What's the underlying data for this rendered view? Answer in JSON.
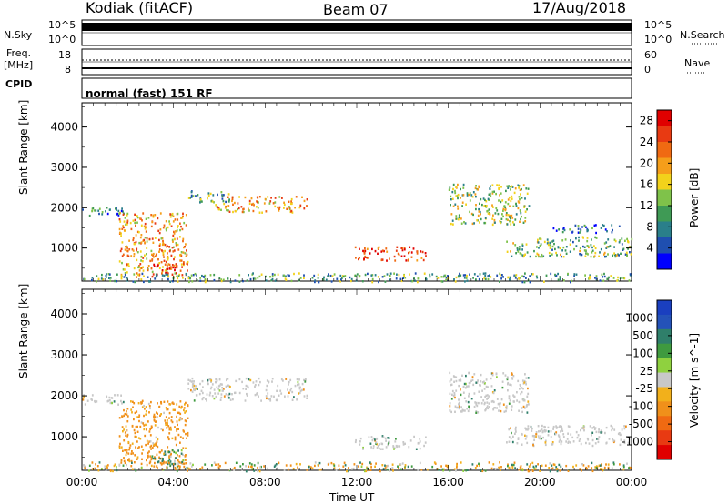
{
  "header": {
    "station": "Kodiak (fitACF)",
    "beam": "Beam 07",
    "date": "17/Aug/2018"
  },
  "status_panels": {
    "nsky": {
      "label": "N.Sky",
      "top_tick": "10^5",
      "bottom_tick": "10^0"
    },
    "nsearch": {
      "label": "N.Search",
      "top_tick": "10^5",
      "bottom_tick": "10^0"
    },
    "freq": {
      "label_line1": "Freq.",
      "label_line2": "[MHz]",
      "top_tick": "18",
      "bottom_tick": "8"
    },
    "nave": {
      "label": "Nave",
      "top_tick": "60",
      "bottom_tick": "0"
    },
    "cpid": {
      "label": "CPID",
      "value": "normal (fast) 151 RF"
    }
  },
  "colors": {
    "power_scale": [
      "#0000ff",
      "#1f4fb0",
      "#2a7f8a",
      "#3f9a55",
      "#7fc24a",
      "#f2d21b",
      "#f59e1a",
      "#f06a12",
      "#e83a12",
      "#e00000"
    ],
    "velocity_scale": [
      "#1a3fbf",
      "#2452b8",
      "#2f7f6a",
      "#3f9a3f",
      "#8fd13f",
      "#c8c8c8",
      "#f2b01b",
      "#f0901a",
      "#f06a12",
      "#e83a12",
      "#e00000"
    ],
    "ground_scatter": "#c8c8c8"
  },
  "chart_data": [
    {
      "type": "heatmap",
      "parameter": "Power",
      "xlabel": "",
      "ylabel": "Slant Range [km]",
      "xlim": [
        "00:00",
        "24:00"
      ],
      "ylim": [
        180,
        4600
      ],
      "y_ticks": [
        "1000",
        "2000",
        "3000",
        "4000"
      ],
      "colorbar": {
        "label": "Power [dB]",
        "range": [
          0,
          30
        ],
        "tick_labels": [
          "4",
          "8",
          "12",
          "16",
          "20",
          "24",
          "28"
        ],
        "tick_values": [
          4,
          8,
          12,
          16,
          20,
          24,
          28
        ]
      },
      "scatter_regions": [
        {
          "t_start": 0.0,
          "t_end": 1.8,
          "range_start": 1800,
          "range_end": 2050,
          "power": 8
        },
        {
          "t_start": 1.6,
          "t_end": 4.6,
          "range_start": 300,
          "range_end": 1900,
          "power": 20
        },
        {
          "t_start": 3.0,
          "t_end": 4.2,
          "range_start": 350,
          "range_end": 700,
          "power": 28
        },
        {
          "t_start": 4.6,
          "t_end": 6.5,
          "range_start": 2150,
          "range_end": 2450,
          "power": 10
        },
        {
          "t_start": 5.8,
          "t_end": 9.8,
          "range_start": 1900,
          "range_end": 2300,
          "power": 20
        },
        {
          "t_start": 11.9,
          "t_end": 15.0,
          "range_start": 700,
          "range_end": 1050,
          "power": 26
        },
        {
          "t_start": 16.0,
          "t_end": 19.5,
          "range_start": 1600,
          "range_end": 2600,
          "power": 14
        },
        {
          "t_start": 18.5,
          "t_end": 24.0,
          "range_start": 800,
          "range_end": 1300,
          "power": 12
        },
        {
          "t_start": 20.5,
          "t_end": 23.5,
          "range_start": 1400,
          "range_end": 1600,
          "power": 6
        },
        {
          "t_start": 0.0,
          "t_end": 24.0,
          "range_start": 180,
          "range_end": 400,
          "power": 10
        }
      ]
    },
    {
      "type": "heatmap",
      "parameter": "Velocity",
      "xlabel": "Time UT",
      "ylabel": "Slant Range [km]",
      "xlim": [
        "00:00",
        "24:00"
      ],
      "ylim": [
        180,
        4600
      ],
      "x_ticks": [
        "00:00",
        "04:00",
        "08:00",
        "12:00",
        "16:00",
        "20:00",
        "00:00"
      ],
      "y_ticks": [
        "1000",
        "2000",
        "3000",
        "4000"
      ],
      "colorbar": {
        "label": "Velocity [m s^-1]",
        "tick_labels": [
          "1000",
          "500",
          "100",
          "25",
          "-25",
          "-100",
          "-500",
          "-1000"
        ],
        "tick_values": [
          1000,
          500,
          100,
          25,
          -25,
          -100,
          -500,
          -1000
        ]
      },
      "scatter_regions": [
        {
          "t_start": 0.0,
          "t_end": 1.8,
          "range_start": 1800,
          "range_end": 2050,
          "velocity": 0,
          "ground_scatter": true
        },
        {
          "t_start": 1.6,
          "t_end": 4.6,
          "range_start": 300,
          "range_end": 1900,
          "velocity": -200
        },
        {
          "t_start": 3.0,
          "t_end": 4.4,
          "range_start": 300,
          "range_end": 700,
          "velocity": 150
        },
        {
          "t_start": 4.6,
          "t_end": 9.8,
          "range_start": 1900,
          "range_end": 2450,
          "velocity": 0,
          "ground_scatter": true
        },
        {
          "t_start": 11.9,
          "t_end": 15.0,
          "range_start": 700,
          "range_end": 1050,
          "velocity": 0,
          "ground_scatter": true
        },
        {
          "t_start": 16.0,
          "t_end": 19.5,
          "range_start": 1600,
          "range_end": 2600,
          "velocity": 0,
          "ground_scatter": true
        },
        {
          "t_start": 18.5,
          "t_end": 24.0,
          "range_start": 800,
          "range_end": 1300,
          "velocity": 0,
          "ground_scatter": true
        },
        {
          "t_start": 0.0,
          "t_end": 24.0,
          "range_start": 180,
          "range_end": 400,
          "velocity": -50
        }
      ]
    }
  ]
}
